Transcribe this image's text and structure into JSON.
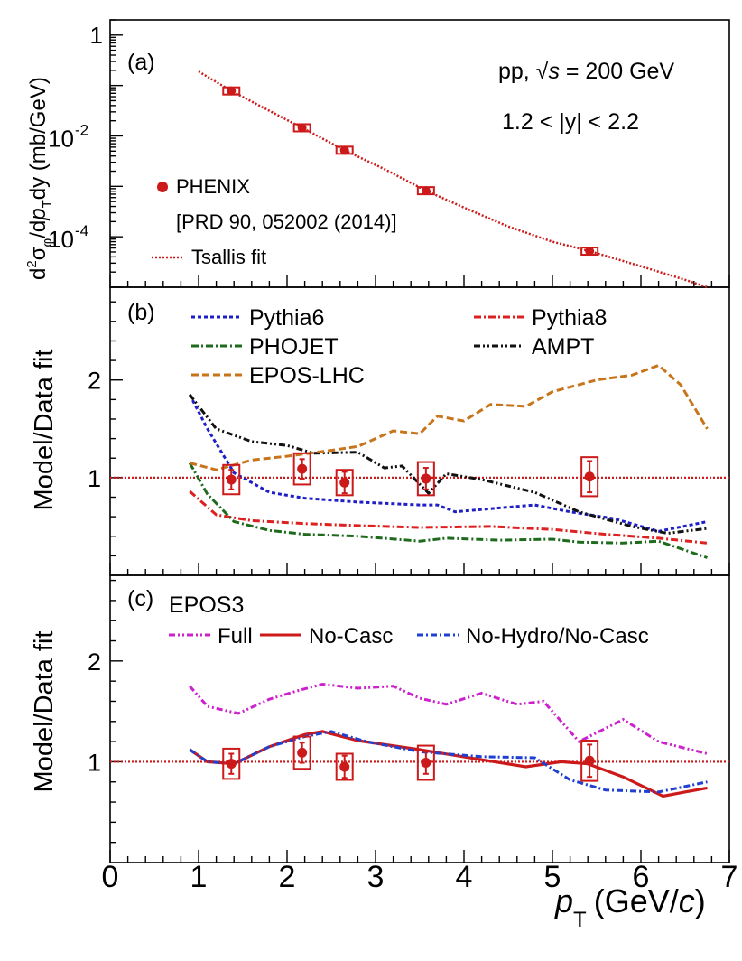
{
  "figure": {
    "x_label_main": "p",
    "x_label_sub": "T",
    "x_label_unit": "(GeV/",
    "x_label_unit_c": "c",
    "x_label_close": ")"
  },
  "chart_data": [
    {
      "panel": "a",
      "type": "scatter",
      "scale_y": "log",
      "panel_label": "(a)",
      "ylabel": "d²σφ/dpTdy (mb/GeV)",
      "ylabel_parts": {
        "d": "d",
        "two": "2",
        "sigma": "σ",
        "phi": "φ",
        "mid": "/d",
        "p": "p",
        "t": "T",
        "dy": "dy (mb/GeV)"
      },
      "ylim": [
        1e-05,
        2
      ],
      "y_ticks": [
        {
          "value": 1,
          "label": "1"
        },
        {
          "value": 0.01,
          "base": "10",
          "exp": "-2"
        },
        {
          "value": 0.0001,
          "base": "10",
          "exp": "-4"
        }
      ],
      "annotations": {
        "system": "pp, ",
        "sqrt_s": "√",
        "sqrt_s_var": "s",
        "energy": " = 200 GeV",
        "rapidity": "1.2 < |y| < 2.2"
      },
      "legend": {
        "phenix": "PHENIX",
        "reference": "[PRD 90, 052002 (2014)]",
        "fit": "Tsallis fit"
      },
      "phenix_points": [
        {
          "x": 1.37,
          "y": 0.078
        },
        {
          "x": 2.17,
          "y": 0.0145
        },
        {
          "x": 2.65,
          "y": 0.0052
        },
        {
          "x": 3.57,
          "y": 0.00082
        },
        {
          "x": 5.42,
          "y": 5.2e-05
        }
      ],
      "tsallis_fit": {
        "x": [
          1.0,
          1.37,
          1.75,
          2.17,
          2.65,
          3.1,
          3.57,
          4.0,
          4.5,
          5.0,
          5.42,
          6.0,
          6.5,
          6.75
        ],
        "y": [
          0.19,
          0.078,
          0.035,
          0.0145,
          0.0052,
          0.0022,
          0.00082,
          0.00038,
          0.00016,
          8e-05,
          5.2e-05,
          2.6e-05,
          1.4e-05,
          1e-05
        ]
      }
    },
    {
      "panel": "b",
      "type": "line",
      "panel_label": "(b)",
      "ylabel": "Model/Data fit",
      "ylim": [
        0,
        2.95
      ],
      "y_ticks": [
        {
          "value": 1,
          "label": "1"
        },
        {
          "value": 2,
          "label": "2"
        }
      ],
      "reference_line": 1,
      "series": [
        {
          "name": "Pythia6",
          "color": "#1f1fc8",
          "dash": "4 3",
          "x": [
            0.9,
            1.1,
            1.4,
            1.8,
            2.2,
            2.8,
            3.5,
            3.7,
            3.9,
            4.4,
            4.8,
            5.2,
            5.7,
            6.2,
            6.75
          ],
          "y": [
            1.85,
            1.5,
            1.05,
            0.85,
            0.79,
            0.75,
            0.72,
            0.72,
            0.65,
            0.69,
            0.72,
            0.65,
            0.58,
            0.45,
            0.55
          ]
        },
        {
          "name": "Pythia8",
          "color": "#dd2020",
          "dash": "8 3 2 3",
          "x": [
            0.9,
            1.2,
            1.6,
            2.2,
            2.8,
            3.5,
            4.3,
            5.0,
            5.6,
            6.2,
            6.75
          ],
          "y": [
            0.86,
            0.62,
            0.56,
            0.53,
            0.51,
            0.49,
            0.5,
            0.47,
            0.42,
            0.38,
            0.33
          ]
        },
        {
          "name": "PHOJET",
          "color": "#1e6b1e",
          "dash": "8 3 2 3",
          "x": [
            0.9,
            1.1,
            1.4,
            1.8,
            2.2,
            2.8,
            3.5,
            3.8,
            4.4,
            5.0,
            5.3,
            5.8,
            6.2,
            6.75
          ],
          "y": [
            1.15,
            0.83,
            0.55,
            0.46,
            0.42,
            0.4,
            0.35,
            0.38,
            0.36,
            0.37,
            0.34,
            0.33,
            0.35,
            0.18
          ]
        },
        {
          "name": "AMPT",
          "color": "#111111",
          "dash": "7 3 2 3 2 3",
          "x": [
            0.9,
            1.2,
            1.6,
            2.0,
            2.3,
            2.8,
            3.1,
            3.3,
            3.6,
            3.8,
            4.2,
            4.8,
            5.3,
            5.9,
            6.3,
            6.75
          ],
          "y": [
            1.85,
            1.5,
            1.37,
            1.33,
            1.25,
            1.26,
            1.1,
            1.12,
            0.84,
            1.04,
            0.98,
            0.85,
            0.65,
            0.5,
            0.43,
            0.48
          ]
        },
        {
          "name": "EPOS-LHC",
          "color": "#c8741a",
          "dash": "8 4",
          "x": [
            0.9,
            1.2,
            1.6,
            2.0,
            2.5,
            2.8,
            3.2,
            3.5,
            3.7,
            4.0,
            4.3,
            4.7,
            5.0,
            5.5,
            5.9,
            6.2,
            6.45,
            6.75
          ],
          "y": [
            1.15,
            1.08,
            1.18,
            1.22,
            1.28,
            1.32,
            1.48,
            1.45,
            1.63,
            1.58,
            1.75,
            1.73,
            1.88,
            2.0,
            2.05,
            2.15,
            1.95,
            1.5
          ]
        }
      ],
      "phenix_ratio": [
        {
          "x": 1.37,
          "y": 0.98,
          "stat": 0.1,
          "sys": 0.15
        },
        {
          "x": 2.17,
          "y": 1.09,
          "stat": 0.1,
          "sys": 0.16
        },
        {
          "x": 2.65,
          "y": 0.95,
          "stat": 0.11,
          "sys": 0.13
        },
        {
          "x": 3.57,
          "y": 0.99,
          "stat": 0.11,
          "sys": 0.17
        },
        {
          "x": 5.42,
          "y": 1.01,
          "stat": 0.16,
          "sys": 0.2
        }
      ]
    },
    {
      "panel": "c",
      "type": "line",
      "panel_label": "(c)",
      "title": "EPOS3",
      "ylabel": "Model/Data fit",
      "ylim": [
        0,
        2.85
      ],
      "y_ticks": [
        {
          "value": 1,
          "label": "1"
        },
        {
          "value": 2,
          "label": "2"
        }
      ],
      "reference_line": 1,
      "series": [
        {
          "name": "Full",
          "color": "#cc22cc",
          "dash": "7 3 2 3 2 3",
          "x": [
            0.9,
            1.1,
            1.45,
            1.8,
            2.1,
            2.4,
            2.8,
            3.2,
            3.5,
            3.8,
            4.2,
            4.6,
            4.9,
            5.3,
            5.8,
            6.2,
            6.75
          ],
          "y": [
            1.75,
            1.55,
            1.48,
            1.62,
            1.7,
            1.77,
            1.73,
            1.75,
            1.63,
            1.57,
            1.68,
            1.57,
            1.6,
            1.2,
            1.42,
            1.2,
            1.08
          ]
        },
        {
          "name": "No-Casc",
          "color": "#cc1a1a",
          "dash": "",
          "x": [
            0.9,
            1.1,
            1.4,
            1.8,
            2.2,
            2.4,
            2.8,
            3.5,
            4.2,
            4.7,
            5.1,
            5.4,
            5.8,
            6.25,
            6.75
          ],
          "y": [
            1.12,
            1.0,
            0.98,
            1.15,
            1.27,
            1.3,
            1.21,
            1.12,
            1.02,
            0.95,
            1.0,
            0.98,
            0.85,
            0.66,
            0.74
          ]
        },
        {
          "name": "No-Hydro/No-Casc",
          "color": "#2040d0",
          "dash": "7 3 2 3",
          "x": [
            0.9,
            1.1,
            1.4,
            1.8,
            2.2,
            2.5,
            2.9,
            3.5,
            4.2,
            4.8,
            5.2,
            5.6,
            6.2,
            6.75
          ],
          "y": [
            1.12,
            1.0,
            0.98,
            1.15,
            1.25,
            1.3,
            1.2,
            1.1,
            1.05,
            1.04,
            0.82,
            0.72,
            0.7,
            0.8
          ]
        }
      ],
      "phenix_ratio": [
        {
          "x": 1.37,
          "y": 0.98,
          "stat": 0.1,
          "sys": 0.15
        },
        {
          "x": 2.17,
          "y": 1.09,
          "stat": 0.1,
          "sys": 0.16
        },
        {
          "x": 2.65,
          "y": 0.95,
          "stat": 0.11,
          "sys": 0.13
        },
        {
          "x": 3.57,
          "y": 0.99,
          "stat": 0.11,
          "sys": 0.17
        },
        {
          "x": 5.42,
          "y": 1.01,
          "stat": 0.16,
          "sys": 0.2
        }
      ]
    }
  ],
  "x_axis": {
    "xlim": [
      0,
      7
    ],
    "ticks": [
      "0",
      "1",
      "2",
      "3",
      "4",
      "5",
      "6",
      "7"
    ]
  }
}
